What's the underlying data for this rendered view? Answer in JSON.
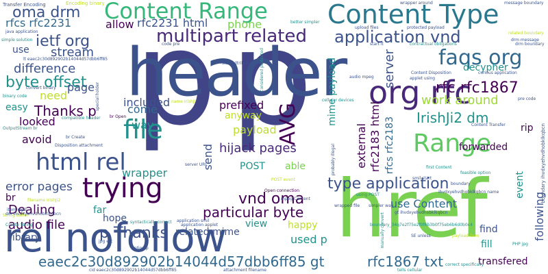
{
  "palette": {
    "dark_purple": "#440154",
    "indigo": "#3b528b",
    "navy": "#414487",
    "blue": "#31688e",
    "teal": "#21918c",
    "teal_dark": "#2a788e",
    "green": "#35b779",
    "lime": "#7ad151",
    "yellow": "#bddf26"
  },
  "words": [
    {
      "text": "p",
      "color": "#414487"
    },
    {
      "text": "header",
      "color": "#3b528b"
    },
    {
      "text": "href",
      "color": "#7ad151"
    },
    {
      "text": "rel nofollow",
      "color": "#3b528b"
    },
    {
      "text": "Content Type",
      "color": "#2a788e"
    },
    {
      "text": "Content Range",
      "color": "#35b779"
    },
    {
      "text": "org rfc",
      "color": "#482878"
    },
    {
      "text": "trying",
      "color": "#440154"
    },
    {
      "text": "html rel",
      "color": "#3b528b"
    },
    {
      "text": "file",
      "color": "#21918c"
    },
    {
      "text": "Range",
      "color": "#5ec962"
    },
    {
      "text": "faqs org",
      "color": "#31688e"
    },
    {
      "text": "multipart related",
      "color": "#482878"
    },
    {
      "text": "application vnd",
      "color": "#3b528b"
    },
    {
      "text": "eaec2c30d892902b14044d57dbb6ff85 gt",
      "color": "#31688e"
    },
    {
      "text": "rfc1867 txt",
      "color": "#31688e"
    },
    {
      "text": "AVG",
      "color": "#440154"
    },
    {
      "text": "rfc rfc1867",
      "color": "#440154"
    },
    {
      "text": "type application",
      "color": "#3b528b"
    },
    {
      "text": "vnd oma",
      "color": "#440154"
    },
    {
      "text": "particular byte",
      "color": "#440154"
    },
    {
      "text": "oma drm",
      "color": "#3b528b"
    },
    {
      "text": "ietf org",
      "color": "#3b528b"
    },
    {
      "text": "rfc2231 html",
      "color": "#3b528b"
    },
    {
      "text": "rfcs rfc2231",
      "color": "#31688e"
    },
    {
      "text": "byte offset",
      "color": "#21918c"
    },
    {
      "text": "difference",
      "color": "#3b528b"
    },
    {
      "text": "stream",
      "color": "#3b528b"
    },
    {
      "text": "Thanks p",
      "color": "#440154"
    },
    {
      "text": "p Thanks",
      "color": "#3b528b"
    },
    {
      "text": "IrishJi2 dm",
      "color": "#21918c"
    },
    {
      "text": "work around",
      "color": "#a0da39"
    },
    {
      "text": "hijack pages",
      "color": "#482878"
    },
    {
      "text": "error pages",
      "color": "#3b528b"
    },
    {
      "text": "audio file",
      "color": "#440154"
    },
    {
      "text": "library",
      "color": "#3b528b"
    },
    {
      "text": "Dealing",
      "color": "#440154"
    },
    {
      "text": "payload",
      "color": "#bddf26"
    },
    {
      "text": "prefixed",
      "color": "#440154"
    },
    {
      "text": "wrapper",
      "color": "#21918c"
    },
    {
      "text": "included",
      "color": "#3b528b"
    },
    {
      "text": "anyway",
      "color": "#bddf26"
    },
    {
      "text": "related mime",
      "color": "#3b528b"
    },
    {
      "text": "transfered",
      "color": "#440154"
    },
    {
      "text": "used p",
      "color": "#21918c"
    },
    {
      "text": "use Content",
      "color": "#31688e"
    },
    {
      "text": "happy",
      "color": "#bddf26"
    },
    {
      "text": "POST",
      "color": "#21918c"
    },
    {
      "text": "able",
      "color": "#7ad151"
    },
    {
      "text": "phone",
      "color": "#7ad151"
    },
    {
      "text": "allow",
      "color": "#440154"
    },
    {
      "text": "page",
      "color": "#3b528b"
    },
    {
      "text": "need",
      "color": "#bddf26"
    },
    {
      "text": "looked",
      "color": "#440154"
    },
    {
      "text": "easy",
      "color": "#21918c"
    },
    {
      "text": "avoid",
      "color": "#440154"
    },
    {
      "text": "way",
      "color": "#21918c"
    },
    {
      "text": "come",
      "color": "#31688e"
    },
    {
      "text": "far",
      "color": "#21918c"
    },
    {
      "text": "hope",
      "color": "#3b528b"
    },
    {
      "text": "view",
      "color": "#21918c"
    },
    {
      "text": "find",
      "color": "#3b528b"
    },
    {
      "text": "fill",
      "color": "#21918c"
    },
    {
      "text": "br",
      "color": "#440154"
    },
    {
      "text": "rip",
      "color": "#440154"
    },
    {
      "text": "forwarded",
      "color": "#440154"
    },
    {
      "text": "use",
      "color": "#3b528b"
    },
    {
      "text": "decypher",
      "color": "#21918c"
    },
    {
      "text": "server",
      "color": "#3b528b"
    },
    {
      "text": "send",
      "color": "#3b528b"
    },
    {
      "text": "external",
      "color": "#440154"
    },
    {
      "text": "rfc2183 html",
      "color": "#440154"
    },
    {
      "text": "rfcs rfc2183",
      "color": "#31688e"
    },
    {
      "text": "event",
      "color": "#21918c"
    },
    {
      "text": "following",
      "color": "#3b528b"
    },
    {
      "text": "mime payload",
      "color": "#21918c"
    },
    {
      "text": "Transfer Encoding",
      "color": "#3b528b"
    },
    {
      "text": "Encoding binary",
      "color": "#bddf26"
    },
    {
      "text": "java application",
      "color": "#3b528b"
    },
    {
      "text": "simple solution",
      "color": "#21918c"
    },
    {
      "text": "lt eaec2c30d892902b14044d57dbb6ff85",
      "color": "#3b528b"
    },
    {
      "text": "convert binary",
      "color": "#3b528b"
    },
    {
      "text": "binary code",
      "color": "#21918c"
    },
    {
      "text": "compatible header",
      "color": "#21918c"
    },
    {
      "text": "br Create",
      "color": "#3b528b"
    },
    {
      "text": "br Open",
      "color": "#440154"
    },
    {
      "text": "OutputStream br",
      "color": "#21918c"
    },
    {
      "text": "Disposition attachment",
      "color": "#3b528b"
    },
    {
      "text": "item mp3",
      "color": "#3b528b"
    },
    {
      "text": "String buffer",
      "color": "#bddf26"
    },
    {
      "text": "filename IrishJi2",
      "color": "#bddf26"
    },
    {
      "text": "dm ihvdxyehvdhobklkqbcn",
      "color": "#3b528b"
    },
    {
      "text": "Create String",
      "color": "#21918c"
    },
    {
      "text": "syntactically correct",
      "color": "#21918c"
    },
    {
      "text": "application applet",
      "color": "#3b528b"
    },
    {
      "text": "application smil",
      "color": "#3b528b"
    },
    {
      "text": "jpg etc",
      "color": "#3b528b"
    },
    {
      "text": "option p",
      "color": "#3b528b"
    },
    {
      "text": "cid eaec2c30d892902b14044d57dbb6ff85",
      "color": "#3b528b"
    },
    {
      "text": "attachment filename",
      "color": "#3b528b"
    },
    {
      "text": "tells cellular",
      "color": "#21918c"
    },
    {
      "text": "correct specifically",
      "color": "#21918c"
    },
    {
      "text": "payload item",
      "color": "#bddf26"
    },
    {
      "text": "SE unless",
      "color": "#3b528b"
    },
    {
      "text": "simpler way",
      "color": "#3b528b"
    },
    {
      "text": "wrapped file",
      "color": "#3b528b"
    },
    {
      "text": "using POST",
      "color": "#21918c"
    },
    {
      "text": "Open connection",
      "color": "#440154"
    },
    {
      "text": "mpeg Content",
      "color": "#3b528b"
    },
    {
      "text": "smil start",
      "color": "#3b528b"
    },
    {
      "text": "feasible option",
      "color": "#21918c"
    },
    {
      "text": "boundary",
      "color": "#3b528b"
    },
    {
      "text": "ihvdxyehvdhobklkqbcn name",
      "color": "#3b528b"
    },
    {
      "text": "first Content",
      "color": "#21918c"
    },
    {
      "text": "Content Transfer",
      "color": "#3b528b"
    },
    {
      "text": "cellular devices",
      "color": "#21918c"
    },
    {
      "text": "audio mpeg",
      "color": "#3b528b"
    },
    {
      "text": "applet using",
      "color": "#3b528b"
    },
    {
      "text": "Content Disposition",
      "color": "#3b528b"
    },
    {
      "text": "curious application",
      "color": "#3b528b"
    },
    {
      "text": "pre code",
      "color": "#3b528b"
    },
    {
      "text": "contractual obligations",
      "color": "#21918c"
    },
    {
      "text": "related boundary",
      "color": "#bddf26"
    },
    {
      "text": "drm message",
      "color": "#3b528b"
    },
    {
      "text": "message boundary",
      "color": "#3b528b"
    },
    {
      "text": "wrapper around",
      "color": "#3b528b"
    },
    {
      "text": "protected payload",
      "color": "#3b528b"
    },
    {
      "text": "upload files",
      "color": "#3b528b"
    },
    {
      "text": "better simpler",
      "color": "#21918c"
    },
    {
      "text": "start attribute",
      "color": "#3b528b"
    },
    {
      "text": "code pre",
      "color": "#3b528b"
    },
    {
      "text": "start lt",
      "color": "#3b528b"
    },
    {
      "text": "probably illegal",
      "color": "#3b528b"
    },
    {
      "text": "write content",
      "color": "#3b528b"
    },
    {
      "text": "considered protected",
      "color": "#21918c"
    },
    {
      "text": "manually convert",
      "color": "#21918c"
    },
    {
      "text": "special holder",
      "color": "#3b528b"
    },
    {
      "text": "name IrishJi",
      "color": "#bddf26"
    },
    {
      "text": "server URL",
      "color": "#3b528b"
    },
    {
      "text": "POST event",
      "color": "#bddf26"
    },
    {
      "text": "boundary ihvdxyehvdhobklkqbcn",
      "color": "#3b528b"
    },
    {
      "text": "gt ihvdxyehvdhobklkqbcn",
      "color": "#3b528b"
    },
    {
      "text": "drm boundary",
      "color": "#3b528b"
    },
    {
      "text": "boundary_34q7e2f75e2f0f6b3b0f75eb6b6d0b0c4",
      "color": "#21918c"
    },
    {
      "text": "PHP jpg",
      "color": "#21918c"
    }
  ]
}
